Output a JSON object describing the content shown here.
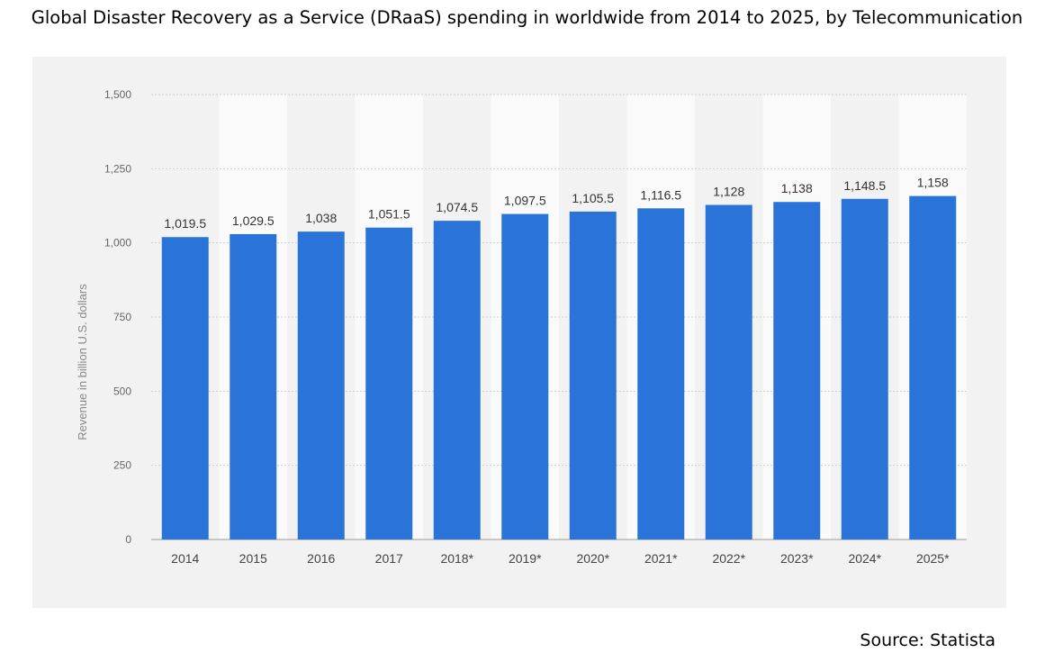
{
  "page": {
    "title": "Global Disaster Recovery as a Service (DRaaS) spending in worldwide from 2014 to 2025, by Telecommunication",
    "source": "Source: Statista"
  },
  "chart_data": {
    "type": "bar",
    "title": "",
    "xlabel": "",
    "ylabel": "Revenue in billion U.S. dollars",
    "categories": [
      "2014",
      "2015",
      "2016",
      "2017",
      "2018*",
      "2019*",
      "2020*",
      "2021*",
      "2022*",
      "2023*",
      "2024*",
      "2025*"
    ],
    "values": [
      1019.5,
      1029.5,
      1038,
      1051.5,
      1074.5,
      1097.5,
      1105.5,
      1116.5,
      1128,
      1138,
      1148.5,
      1158
    ],
    "value_labels": [
      "1,019.5",
      "1,029.5",
      "1,038",
      "1,051.5",
      "1,074.5",
      "1,097.5",
      "1,105.5",
      "1,116.5",
      "1,128",
      "1,138",
      "1,148.5",
      "1,158"
    ],
    "yticks": [
      0,
      250,
      500,
      750,
      1000,
      1250,
      1500
    ],
    "ytick_labels": [
      "0",
      "250",
      "500",
      "750",
      "1,000",
      "1,250",
      "1,500"
    ],
    "ylim": [
      0,
      1500
    ],
    "grid": true,
    "legend": "none",
    "bar_color": "#2a74d9",
    "panel_color": "#f2f2f2",
    "band_color": "#fafafa"
  }
}
